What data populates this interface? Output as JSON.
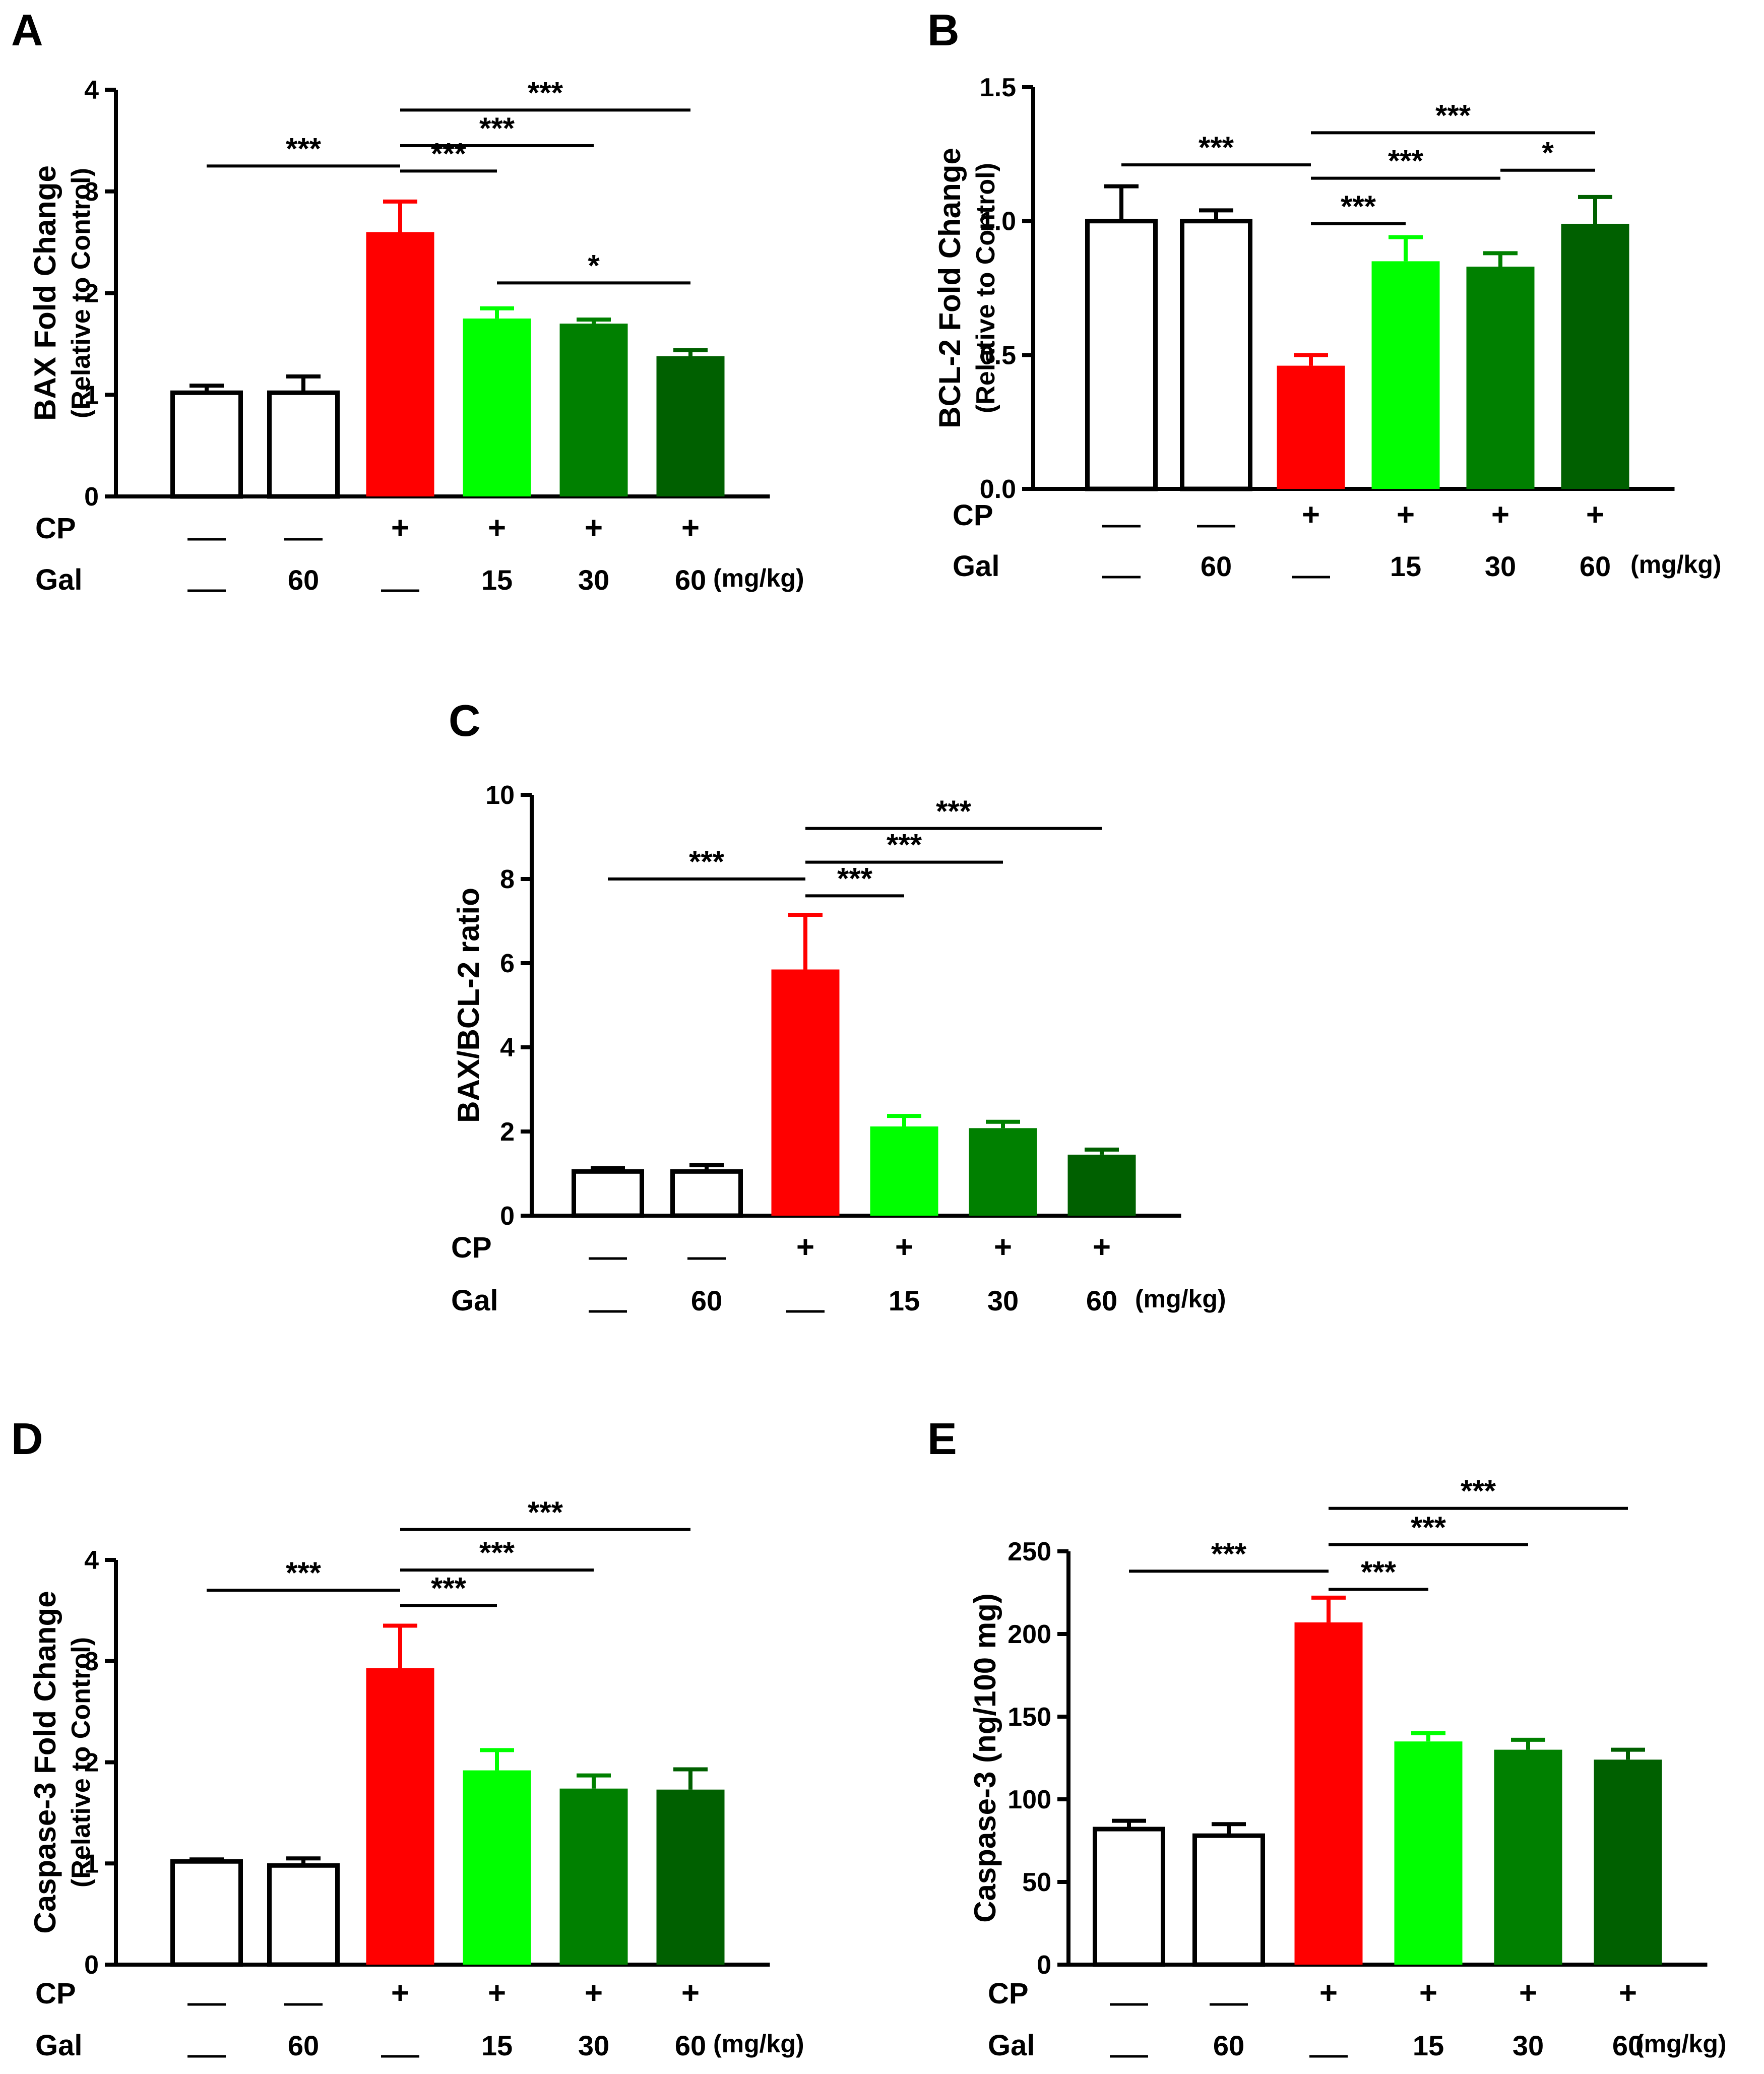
{
  "colors": {
    "control": "#ffffff",
    "cp": "#ff0000",
    "gal15": "#00ff00",
    "gal30": "#008000",
    "gal60": "#006000",
    "axis": "#000000"
  },
  "row_labels": {
    "cp": "CP",
    "gal": "Gal",
    "unit": "(mg/kg)"
  },
  "groups": [
    {
      "cp": "—",
      "gal": "—"
    },
    {
      "cp": "—",
      "gal": "60"
    },
    {
      "cp": "+",
      "gal": "—"
    },
    {
      "cp": "+",
      "gal": "15"
    },
    {
      "cp": "+",
      "gal": "30"
    },
    {
      "cp": "+",
      "gal": "60"
    }
  ],
  "chart_data": [
    {
      "panel": "A",
      "type": "bar",
      "ylabel": [
        "BAX Fold Change",
        "(Relative to Control)"
      ],
      "ylim": [
        0,
        4
      ],
      "yticks": [
        "0",
        "1",
        "2",
        "3",
        "4"
      ],
      "values": [
        1.02,
        1.02,
        2.6,
        1.75,
        1.7,
        1.38
      ],
      "errors": [
        0.07,
        0.16,
        0.3,
        0.1,
        0.04,
        0.06
      ],
      "significance": [
        {
          "from": 0,
          "to": 2,
          "label": "***",
          "y": 3.25
        },
        {
          "from": 2,
          "to": 3,
          "label": "***",
          "y": 3.2
        },
        {
          "from": 2,
          "to": 4,
          "label": "***",
          "y": 3.45
        },
        {
          "from": 2,
          "to": 5,
          "label": "***",
          "y": 3.8
        },
        {
          "from": 3,
          "to": 5,
          "label": "*",
          "y": 2.1
        }
      ]
    },
    {
      "panel": "B",
      "type": "bar",
      "ylabel": [
        "BCL-2 Fold Change",
        "(Relative to Control)"
      ],
      "ylim": [
        0,
        1.5
      ],
      "yticks": [
        "0.0",
        "0.5",
        "1.0",
        "1.5"
      ],
      "values": [
        1.0,
        1.0,
        0.46,
        0.85,
        0.83,
        0.99
      ],
      "errors": [
        0.13,
        0.04,
        0.04,
        0.09,
        0.05,
        0.1
      ],
      "significance": [
        {
          "from": 0,
          "to": 2,
          "label": "***",
          "y": 1.21
        },
        {
          "from": 2,
          "to": 3,
          "label": "***",
          "y": 0.99
        },
        {
          "from": 2,
          "to": 4,
          "label": "***",
          "y": 1.16
        },
        {
          "from": 2,
          "to": 5,
          "label": "***",
          "y": 1.33
        },
        {
          "from": 4,
          "to": 5,
          "label": "*",
          "y": 1.19
        }
      ]
    },
    {
      "panel": "C",
      "type": "bar",
      "ylabel": [
        "BAX/BCL-2 ratio"
      ],
      "ylim": [
        0,
        10
      ],
      "yticks": [
        "0",
        "2",
        "4",
        "6",
        "8",
        "10"
      ],
      "values": [
        1.05,
        1.05,
        5.85,
        2.12,
        2.08,
        1.45
      ],
      "errors": [
        0.08,
        0.15,
        1.3,
        0.25,
        0.15,
        0.12
      ],
      "significance": [
        {
          "from": 0,
          "to": 2,
          "label": "***",
          "y": 8.0
        },
        {
          "from": 2,
          "to": 3,
          "label": "***",
          "y": 7.6
        },
        {
          "from": 2,
          "to": 4,
          "label": "***",
          "y": 8.4
        },
        {
          "from": 2,
          "to": 5,
          "label": "***",
          "y": 9.2
        }
      ]
    },
    {
      "panel": "D",
      "type": "bar",
      "ylabel": [
        "Caspase-3 Fold Change",
        "(Relative to Control)"
      ],
      "ylim": [
        0,
        4
      ],
      "yticks": [
        "0",
        "1",
        "2",
        "3",
        "4"
      ],
      "values": [
        1.02,
        0.98,
        2.93,
        1.92,
        1.74,
        1.73
      ],
      "errors": [
        0.02,
        0.07,
        0.42,
        0.2,
        0.13,
        0.2
      ],
      "significance": [
        {
          "from": 0,
          "to": 2,
          "label": "***",
          "y": 3.7
        },
        {
          "from": 2,
          "to": 3,
          "label": "***",
          "y": 3.55
        },
        {
          "from": 2,
          "to": 4,
          "label": "***",
          "y": 3.9
        },
        {
          "from": 2,
          "to": 5,
          "label": "***",
          "y": 4.3
        }
      ]
    },
    {
      "panel": "E",
      "type": "bar",
      "ylabel": [
        "Caspase-3 (ng/100 mg)"
      ],
      "ylim": [
        0,
        250
      ],
      "yticks": [
        "0",
        "50",
        "100",
        "150",
        "200",
        "250"
      ],
      "values": [
        82,
        78,
        207,
        135,
        130,
        124
      ],
      "errors": [
        5,
        7,
        15,
        5,
        6,
        6
      ],
      "significance": [
        {
          "from": 0,
          "to": 2,
          "label": "***",
          "y": 238
        },
        {
          "from": 2,
          "to": 3,
          "label": "***",
          "y": 227
        },
        {
          "from": 2,
          "to": 4,
          "label": "***",
          "y": 254
        },
        {
          "from": 2,
          "to": 5,
          "label": "***",
          "y": 276
        }
      ]
    }
  ]
}
